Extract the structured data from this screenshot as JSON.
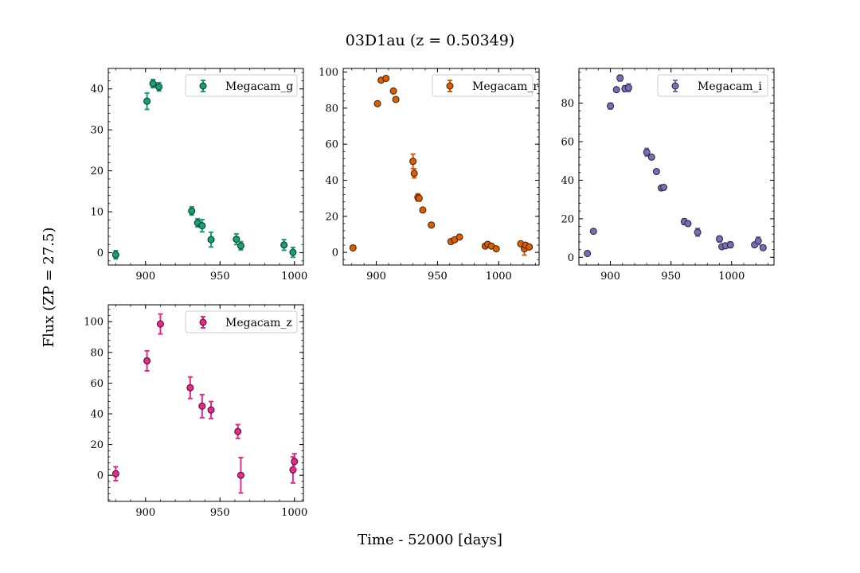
{
  "figure": {
    "title": "03D1au (z = 0.50349)",
    "xlabel": "Time - 52000 [days]",
    "ylabel": "Flux (ZP = 27.5)"
  },
  "chart_data": [
    {
      "type": "scatter",
      "legend": "Megacam_g",
      "legend_position": "upper-right",
      "color": "#1b9e77",
      "xlim": [
        875,
        1006
      ],
      "ylim": [
        -3,
        45
      ],
      "xticks": [
        900,
        950,
        1000
      ],
      "yticks": [
        0,
        10,
        20,
        30,
        40
      ],
      "points": [
        {
          "x": 880,
          "y": -0.5,
          "err": 1.0
        },
        {
          "x": 901,
          "y": 37.0,
          "err": 2.0
        },
        {
          "x": 905,
          "y": 41.3,
          "err": 1.0
        },
        {
          "x": 909,
          "y": 40.5,
          "err": 1.0
        },
        {
          "x": 931,
          "y": 10.2,
          "err": 1.0
        },
        {
          "x": 935,
          "y": 7.3,
          "err": 1.0
        },
        {
          "x": 938,
          "y": 6.6,
          "err": 1.5
        },
        {
          "x": 944,
          "y": 3.2,
          "err": 1.8
        },
        {
          "x": 961,
          "y": 3.3,
          "err": 1.3
        },
        {
          "x": 964,
          "y": 1.7,
          "err": 1.0
        },
        {
          "x": 993,
          "y": 1.9,
          "err": 1.3
        },
        {
          "x": 999,
          "y": 0.1,
          "err": 1.2
        }
      ]
    },
    {
      "type": "scatter",
      "legend": "Megacam_r",
      "legend_position": "upper-right",
      "color": "#d95f02",
      "xlim": [
        873,
        1033
      ],
      "ylim": [
        -7,
        102
      ],
      "xticks": [
        900,
        950,
        1000
      ],
      "yticks": [
        0,
        20,
        40,
        60,
        80,
        100
      ],
      "points": [
        {
          "x": 881,
          "y": 2.5,
          "err": 0.8
        },
        {
          "x": 901,
          "y": 82.5,
          "err": 1.0
        },
        {
          "x": 904,
          "y": 95.5,
          "err": 1.0
        },
        {
          "x": 908,
          "y": 96.5,
          "err": 1.0
        },
        {
          "x": 914,
          "y": 89.5,
          "err": 1.0
        },
        {
          "x": 916,
          "y": 84.8,
          "err": 1.0
        },
        {
          "x": 930,
          "y": 50.5,
          "err": 4.0
        },
        {
          "x": 931,
          "y": 43.8,
          "err": 2.5
        },
        {
          "x": 934,
          "y": 30.5,
          "err": 2.0
        },
        {
          "x": 935,
          "y": 30.0,
          "err": 1.5
        },
        {
          "x": 938,
          "y": 23.5,
          "err": 1.0
        },
        {
          "x": 945,
          "y": 15.2,
          "err": 1.0
        },
        {
          "x": 961,
          "y": 6.0,
          "err": 1.0
        },
        {
          "x": 964,
          "y": 7.0,
          "err": 1.0
        },
        {
          "x": 968,
          "y": 8.5,
          "err": 1.2
        },
        {
          "x": 989,
          "y": 3.5,
          "err": 1.0
        },
        {
          "x": 991,
          "y": 4.5,
          "err": 1.0
        },
        {
          "x": 994,
          "y": 3.5,
          "err": 1.0
        },
        {
          "x": 998,
          "y": 2.0,
          "err": 1.0
        },
        {
          "x": 1018,
          "y": 4.8,
          "err": 1.0
        },
        {
          "x": 1021,
          "y": 2.0,
          "err": 3.5
        },
        {
          "x": 1022,
          "y": 4.0,
          "err": 1.0
        },
        {
          "x": 1025,
          "y": 3.0,
          "err": 1.0
        }
      ]
    },
    {
      "type": "scatter",
      "legend": "Megacam_i",
      "legend_position": "upper-right",
      "color": "#7570b3",
      "xlim": [
        874,
        1035
      ],
      "ylim": [
        -4,
        98
      ],
      "xticks": [
        900,
        950,
        1000
      ],
      "yticks": [
        0,
        20,
        40,
        60,
        80
      ],
      "points": [
        {
          "x": 881,
          "y": 2.0,
          "err": 0.8
        },
        {
          "x": 886,
          "y": 13.5,
          "err": 0.8
        },
        {
          "x": 900,
          "y": 78.5,
          "err": 1.5
        },
        {
          "x": 905,
          "y": 87.0,
          "err": 1.0
        },
        {
          "x": 908,
          "y": 93.0,
          "err": 1.5
        },
        {
          "x": 912,
          "y": 87.5,
          "err": 1.5
        },
        {
          "x": 915,
          "y": 88.0,
          "err": 2.0
        },
        {
          "x": 930,
          "y": 54.5,
          "err": 2.0
        },
        {
          "x": 934,
          "y": 52.0,
          "err": 1.0
        },
        {
          "x": 938,
          "y": 44.5,
          "err": 1.0
        },
        {
          "x": 942,
          "y": 36.0,
          "err": 1.0
        },
        {
          "x": 944,
          "y": 36.3,
          "err": 1.0
        },
        {
          "x": 961,
          "y": 18.5,
          "err": 1.5
        },
        {
          "x": 964,
          "y": 17.5,
          "err": 1.0
        },
        {
          "x": 972,
          "y": 13.0,
          "err": 2.0
        },
        {
          "x": 990,
          "y": 9.5,
          "err": 1.5
        },
        {
          "x": 992,
          "y": 5.5,
          "err": 1.0
        },
        {
          "x": 995,
          "y": 6.0,
          "err": 1.0
        },
        {
          "x": 999,
          "y": 6.5,
          "err": 1.5
        },
        {
          "x": 1019,
          "y": 6.5,
          "err": 1.0
        },
        {
          "x": 1022,
          "y": 8.5,
          "err": 2.0
        },
        {
          "x": 1026,
          "y": 5.0,
          "err": 1.0
        }
      ]
    },
    {
      "type": "scatter",
      "legend": "Megacam_z",
      "legend_position": "upper-right",
      "color": "#e7298a",
      "xlim": [
        875,
        1006
      ],
      "ylim": [
        -17,
        111
      ],
      "xticks": [
        900,
        950,
        1000
      ],
      "yticks": [
        0,
        20,
        40,
        60,
        80,
        100
      ],
      "points": [
        {
          "x": 880,
          "y": 1.0,
          "err": 4.5
        },
        {
          "x": 901,
          "y": 74.5,
          "err": 6.5
        },
        {
          "x": 910,
          "y": 98.5,
          "err": 6.5
        },
        {
          "x": 930,
          "y": 57.0,
          "err": 7.0
        },
        {
          "x": 938,
          "y": 45.0,
          "err": 7.5
        },
        {
          "x": 944,
          "y": 42.5,
          "err": 5.5
        },
        {
          "x": 962,
          "y": 28.5,
          "err": 4.5
        },
        {
          "x": 964,
          "y": 0.0,
          "err": 11.5
        },
        {
          "x": 999,
          "y": 3.5,
          "err": 8.5
        },
        {
          "x": 1000,
          "y": 9.0,
          "err": 5.0
        }
      ]
    }
  ]
}
